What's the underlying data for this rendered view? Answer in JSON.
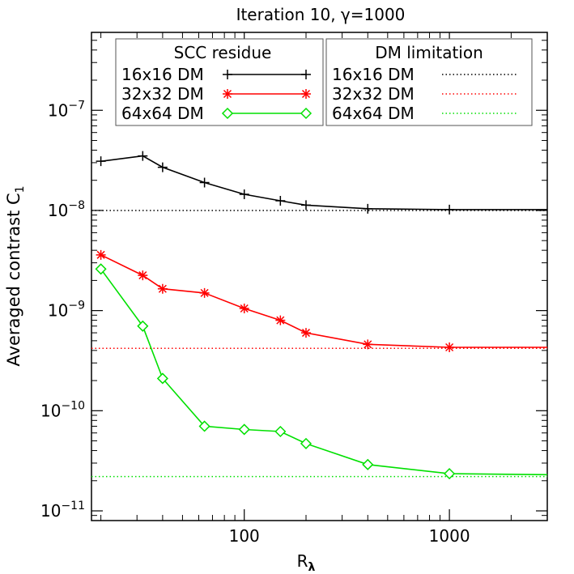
{
  "chart_data": {
    "type": "line",
    "title": "Iteration 10,  γ=1000",
    "xlabel": "R",
    "xlabel_subscript": "λ",
    "ylabel": "Averaged contrast C",
    "ylabel_subscript": "1",
    "x_scale": "log",
    "y_scale": "log",
    "xlim": [
      18,
      3000
    ],
    "ylim": [
      8e-12,
      6e-07
    ],
    "x_ticks": [
      {
        "value": 100,
        "label": "100"
      },
      {
        "value": 1000,
        "label": "1000"
      }
    ],
    "y_ticks": [
      {
        "value": 1e-11,
        "base": "10",
        "exp": "−11"
      },
      {
        "value": 1e-10,
        "base": "10",
        "exp": "−10"
      },
      {
        "value": 1e-09,
        "base": "10",
        "exp": "−9"
      },
      {
        "value": 1e-08,
        "base": "10",
        "exp": "−8"
      },
      {
        "value": 1e-07,
        "base": "10",
        "exp": "−7"
      }
    ],
    "series": [
      {
        "name": "16x16 DM",
        "color": "#000000",
        "marker": "plus",
        "x": [
          20,
          32,
          40,
          64,
          100,
          150,
          200,
          400,
          1000,
          3000
        ],
        "y": [
          3.1e-08,
          3.5e-08,
          2.7e-08,
          1.9e-08,
          1.45e-08,
          1.25e-08,
          1.13e-08,
          1.04e-08,
          1.02e-08,
          1.02e-08
        ]
      },
      {
        "name": "32x32 DM",
        "color": "#ff0000",
        "marker": "asterisk",
        "x": [
          20,
          32,
          40,
          64,
          100,
          150,
          200,
          400,
          1000,
          3000
        ],
        "y": [
          3.6e-09,
          2.25e-09,
          1.65e-09,
          1.5e-09,
          1.05e-09,
          8e-10,
          6e-10,
          4.6e-10,
          4.3e-10,
          4.3e-10
        ]
      },
      {
        "name": "64x64 DM",
        "color": "#00e000",
        "marker": "diamond",
        "x": [
          20,
          32,
          40,
          64,
          100,
          150,
          200,
          400,
          1000,
          3000
        ],
        "y": [
          2.6e-09,
          7e-10,
          2.1e-10,
          7e-11,
          6.5e-11,
          6.2e-11,
          4.7e-11,
          2.9e-11,
          2.35e-11,
          2.3e-11
        ]
      }
    ],
    "limits": [
      {
        "name": "16x16 DM",
        "color": "#000000",
        "y": 1e-08
      },
      {
        "name": "32x32 DM",
        "color": "#ff0000",
        "y": 4.2e-10
      },
      {
        "name": "64x64 DM",
        "color": "#00e000",
        "y": 2.2e-11
      }
    ],
    "legend_left": {
      "title": "SCC residue",
      "entries": [
        "16x16 DM",
        "32x32 DM",
        "64x64 DM"
      ]
    },
    "legend_right": {
      "title": "DM limitation",
      "entries": [
        "16x16 DM",
        "32x32 DM",
        "64x64 DM"
      ]
    }
  }
}
